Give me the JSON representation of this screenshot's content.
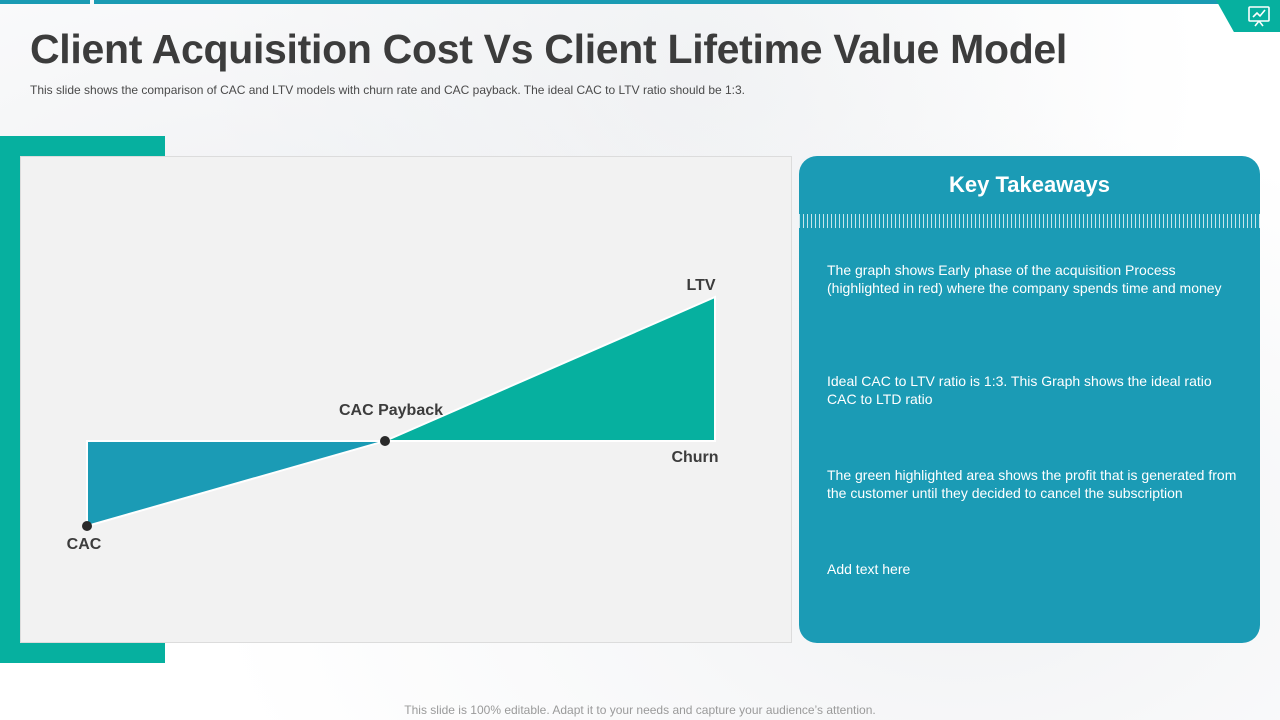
{
  "header": {
    "title": "Client Acquisition Cost Vs Client Lifetime Value Model",
    "subtitle": "This slide shows the comparison of CAC and LTV models with churn rate and CAC payback. The ideal CAC to LTV ratio should be 1:3."
  },
  "diagram": {
    "labels": {
      "ltv": "LTV",
      "cac_payback": "CAC Payback",
      "churn": "Churn",
      "cac": "CAC"
    },
    "colors": {
      "cost_area": "#1b9bb5",
      "profit_area": "#06b09f",
      "point": "#2a2a2a"
    }
  },
  "takeaways": {
    "heading": "Key Takeaways",
    "items": [
      "The graph shows Early phase of the acquisition Process (highlighted in red) where the company spends time and money",
      "Ideal CAC to LTV ratio is 1:3. This Graph shows the ideal ratio CAC to LTD ratio",
      "The green highlighted area shows the profit that is generated from the customer until they decided to cancel the subscription",
      "Add text here"
    ]
  },
  "footer": {
    "text": "This slide is 100% editable. Adapt it to your needs and capture your audience’s attention."
  },
  "theme": {
    "accent": "#1a9bb3",
    "accent_green": "#06b09f",
    "title_color": "#3c3c3c"
  }
}
